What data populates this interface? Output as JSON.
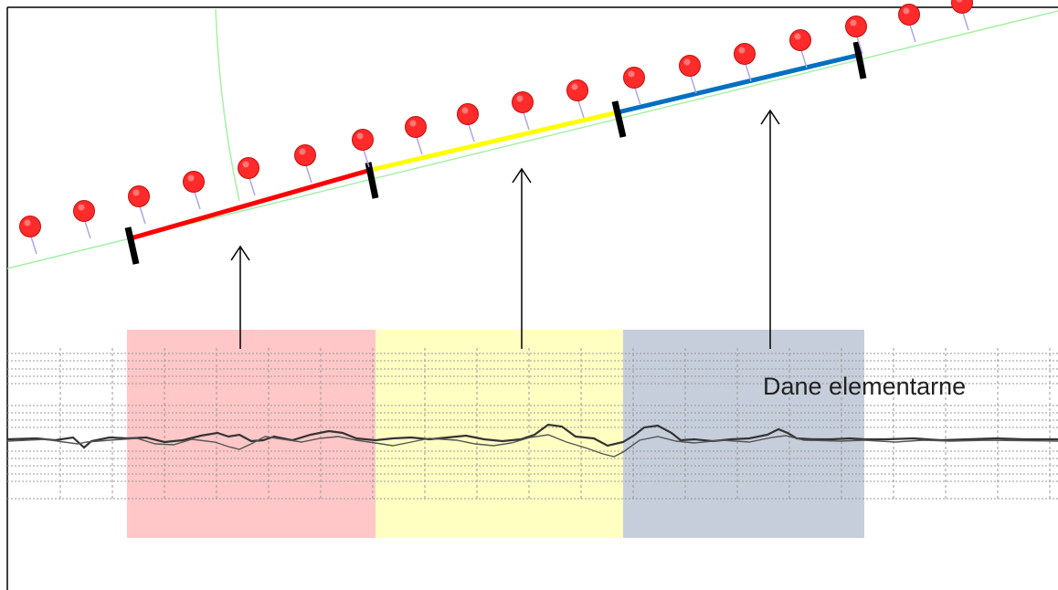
{
  "label": "Dane elementarne",
  "colors": {
    "segment_red": "#ff0000",
    "segment_yellow": "#ffff00",
    "segment_blue": "#0070c0",
    "band_red": "#ffc7c7",
    "band_yellow": "#ffffc2",
    "band_blue": "#c6cedb",
    "marker": "#ff2a2a",
    "track_line": "#99ee99",
    "tick": "#000000"
  },
  "segments": [
    {
      "id": "red",
      "color_key": "segment_red"
    },
    {
      "id": "yellow",
      "color_key": "segment_yellow"
    },
    {
      "id": "blue",
      "color_key": "segment_blue"
    }
  ]
}
